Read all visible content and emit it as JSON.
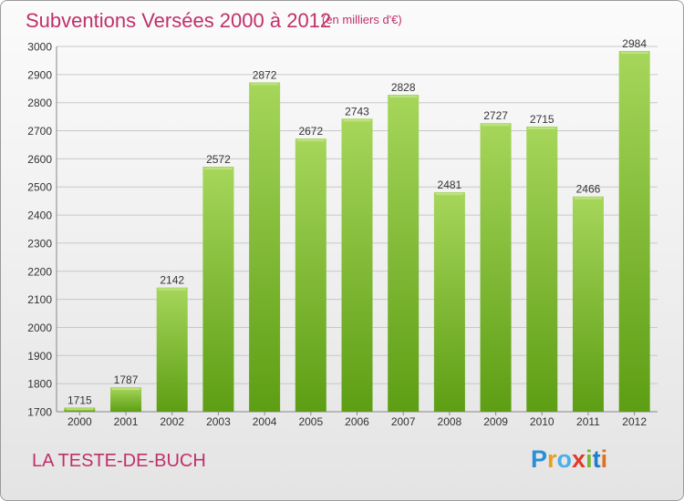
{
  "header": {
    "title": "Subventions Versées 2000 à 2012",
    "subtitle": "(en milliers d'€)"
  },
  "footer": {
    "commune": "LA TESTE-DE-BUCH",
    "logo": "Proxiti",
    "logo_letter_colors": [
      "#2a8fd6",
      "#e6a020",
      "#4ab0e8",
      "#e03a2a",
      "#78b832",
      "#1f7fc8",
      "#e07020"
    ]
  },
  "chart_data": {
    "type": "bar",
    "title": "Subventions Versées 2000 à 2012",
    "subtitle": "(en milliers d'€)",
    "xlabel": "",
    "ylabel": "",
    "categories": [
      "2000",
      "2001",
      "2002",
      "2003",
      "2004",
      "2005",
      "2006",
      "2007",
      "2008",
      "2009",
      "2010",
      "2011",
      "2012"
    ],
    "values": [
      1715,
      1787,
      2142,
      2572,
      2872,
      2672,
      2743,
      2828,
      2481,
      2727,
      2715,
      2466,
      2984
    ],
    "ylim": [
      1700,
      3000
    ],
    "yticks": [
      1700,
      1800,
      1900,
      2000,
      2100,
      2200,
      2300,
      2400,
      2500,
      2600,
      2700,
      2800,
      2900,
      3000
    ],
    "grid": true,
    "legend": "none",
    "bar_color_top": "#a6d65a",
    "bar_color_bottom": "#5d9e14"
  }
}
